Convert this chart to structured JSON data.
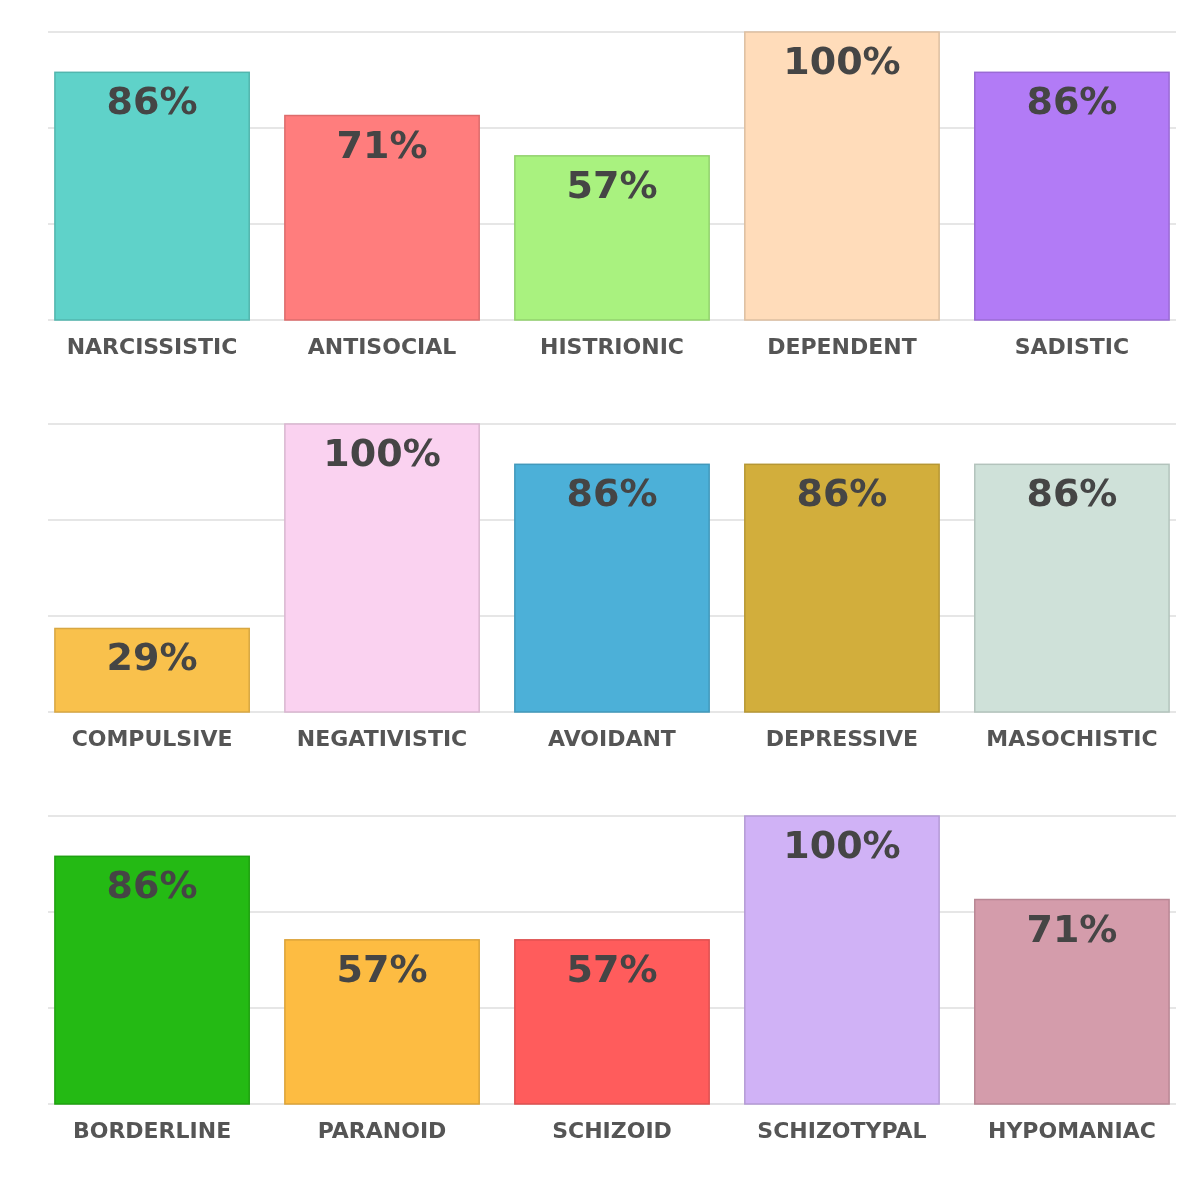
{
  "chart_data": [
    {
      "type": "bar",
      "categories": [
        "NARCISSISTIC",
        "ANTISOCIAL",
        "HISTRIONIC",
        "DEPENDENT",
        "SADISTIC"
      ],
      "values": [
        86,
        71,
        57,
        100,
        86
      ],
      "value_labels": [
        "86%",
        "71%",
        "57%",
        "100%",
        "86%"
      ],
      "colors": [
        "#5fd2c9",
        "#ff7d7d",
        "#a9f27f",
        "#ffdcba",
        "#b27bf6"
      ],
      "ylim": [
        0,
        100
      ],
      "yticks": [
        {
          "value": 0,
          "label": null
        },
        {
          "value": 33.3,
          "label": null
        },
        {
          "value": 66.7,
          "label": null
        },
        {
          "value": 100,
          "label": null
        }
      ],
      "grid": "y",
      "tick_labels": "x"
    },
    {
      "type": "bar",
      "categories": [
        "COMPULSIVE",
        "NEGATIVISTIC",
        "AVOIDANT",
        "DEPRESSIVE",
        "MASOCHISTIC"
      ],
      "values": [
        29,
        100,
        86,
        86,
        86
      ],
      "value_labels": [
        "29%",
        "100%",
        "86%",
        "86%",
        "86%"
      ],
      "colors": [
        "#f9c14c",
        "#fad2f0",
        "#4cb0d8",
        "#d2ae3c",
        "#cfe1d9"
      ],
      "ylim": [
        0,
        100
      ],
      "yticks": [
        {
          "value": 0,
          "label": null
        },
        {
          "value": 33.3,
          "label": null
        },
        {
          "value": 66.7,
          "label": null
        },
        {
          "value": 100,
          "label": null
        }
      ],
      "grid": "y",
      "tick_labels": "x"
    },
    {
      "type": "bar",
      "categories": [
        "BORDERLINE",
        "PARANOID",
        "SCHIZOID",
        "SCHIZOTYPAL",
        "HYPOMANIAC"
      ],
      "values": [
        86,
        57,
        57,
        100,
        71
      ],
      "value_labels": [
        "86%",
        "57%",
        "57%",
        "100%",
        "71%"
      ],
      "colors": [
        "#24ba14",
        "#fdbc42",
        "#ff5c5c",
        "#d0b2f6",
        "#d49cab"
      ],
      "ylim": [
        0,
        100
      ],
      "yticks": [
        {
          "value": 0,
          "label": null
        },
        {
          "value": 33.3,
          "label": null
        },
        {
          "value": 66.7,
          "label": null
        },
        {
          "value": 100,
          "label": null
        }
      ],
      "grid": "y",
      "tick_labels": "x"
    }
  ]
}
